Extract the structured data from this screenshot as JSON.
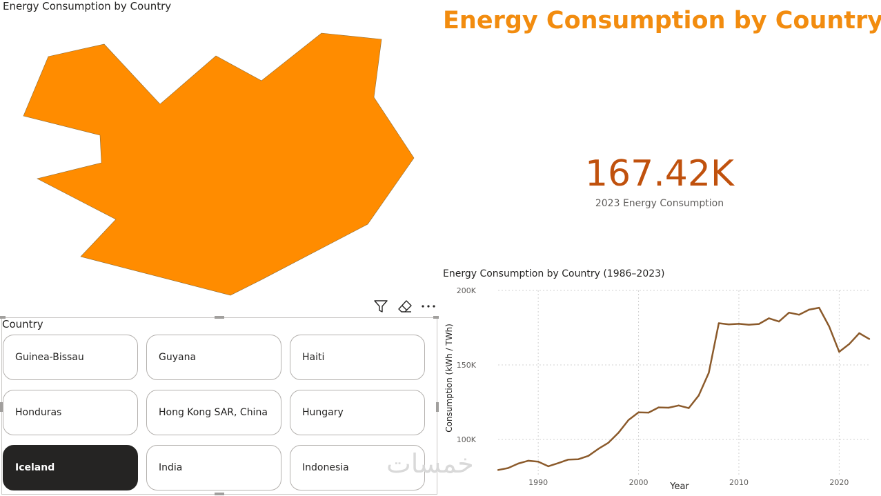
{
  "map": {
    "title": "Energy Consumption by Country",
    "fill_color": "#FF8C00"
  },
  "header": {
    "title": "Energy Consumption by Country",
    "title_color": "#F28C0F"
  },
  "kpi": {
    "value": "167.42K",
    "label": "2023 Energy Consumption",
    "value_color": "#C0510D"
  },
  "toolbar": {
    "icons": [
      "filter-icon",
      "eraser-icon",
      "more-options-icon"
    ]
  },
  "slicer": {
    "header": "Country",
    "items": [
      {
        "label": "Guinea-Bissau",
        "selected": false
      },
      {
        "label": "Guyana",
        "selected": false
      },
      {
        "label": "Haiti",
        "selected": false
      },
      {
        "label": "Honduras",
        "selected": false
      },
      {
        "label": "Hong Kong SAR, China",
        "selected": false
      },
      {
        "label": "Hungary",
        "selected": false
      },
      {
        "label": "Iceland",
        "selected": true
      },
      {
        "label": "India",
        "selected": false
      },
      {
        "label": "Indonesia",
        "selected": false
      }
    ]
  },
  "watermark": "خمسات",
  "chart_data": {
    "type": "line",
    "title": "Energy Consumption by Country (1986–2023)",
    "xlabel": "Year",
    "ylabel": "Consumption (kWh / TWh)",
    "xlim": [
      1986,
      2023
    ],
    "ylim": [
      75000,
      200000
    ],
    "x_ticks": [
      1990,
      2000,
      2010,
      2020
    ],
    "y_ticks": [
      100000,
      150000,
      200000
    ],
    "y_tick_labels": [
      "100K",
      "150K",
      "200K"
    ],
    "x_tick_labels": [
      "1990",
      "2000",
      "2010",
      "2020"
    ],
    "grid": true,
    "line_color": "#8B5A2B",
    "x": [
      1986,
      1987,
      1988,
      1989,
      1990,
      1991,
      1992,
      1993,
      1994,
      1995,
      1996,
      1997,
      1998,
      1999,
      2000,
      2001,
      2002,
      2003,
      2004,
      2005,
      2006,
      2007,
      2008,
      2009,
      2010,
      2011,
      2012,
      2013,
      2014,
      2015,
      2016,
      2017,
      2018,
      2019,
      2020,
      2021,
      2022,
      2023
    ],
    "series": [
      {
        "values": [
          79500,
          80800,
          83800,
          85700,
          85100,
          82000,
          84100,
          86500,
          86700,
          89000,
          93700,
          97800,
          104500,
          113000,
          118200,
          118000,
          121500,
          121300,
          122800,
          121000,
          129500,
          144700,
          178000,
          177200,
          177600,
          177000,
          177500,
          181300,
          179100,
          185100,
          183700,
          187100,
          188400,
          175900,
          158800,
          164000,
          171300,
          167420
        ]
      }
    ]
  }
}
